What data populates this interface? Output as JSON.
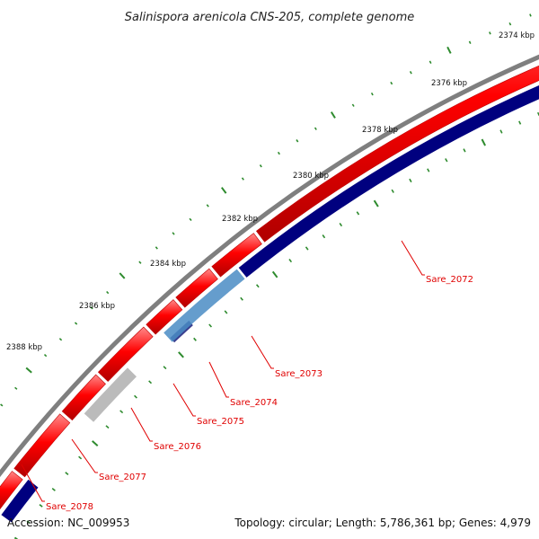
{
  "title": "Salinispora arenicola CNS-205, complete genome",
  "footer": {
    "accession": "Accession: NC_009953",
    "stats": "Topology: circular; Length: 5,786,361 bp; Genes: 4,979"
  },
  "colors": {
    "backbone": "#7f7f7f",
    "forward_gene": "#ff0000",
    "reverse_gene": "#00007f",
    "highlight_gene": "#4a8cc4",
    "pseudo_gene": "#bbbbbb",
    "tick": "#2e8b2e",
    "label": "#e00000"
  },
  "ticks": [
    {
      "label": "2374 kbp"
    },
    {
      "label": "2376 kbp"
    },
    {
      "label": "2378 kbp"
    },
    {
      "label": "2380 kbp"
    },
    {
      "label": "2382 kbp"
    },
    {
      "label": "2384 kbp"
    },
    {
      "label": "2386 kbp"
    },
    {
      "label": "2388 kbp"
    }
  ],
  "genes": [
    {
      "label": "Sare_2072"
    },
    {
      "label": "Sare_2073"
    },
    {
      "label": "Sare_2074"
    },
    {
      "label": "Sare_2075"
    },
    {
      "label": "Sare_2076"
    },
    {
      "label": "Sare_2077"
    },
    {
      "label": "Sare_2078"
    }
  ]
}
